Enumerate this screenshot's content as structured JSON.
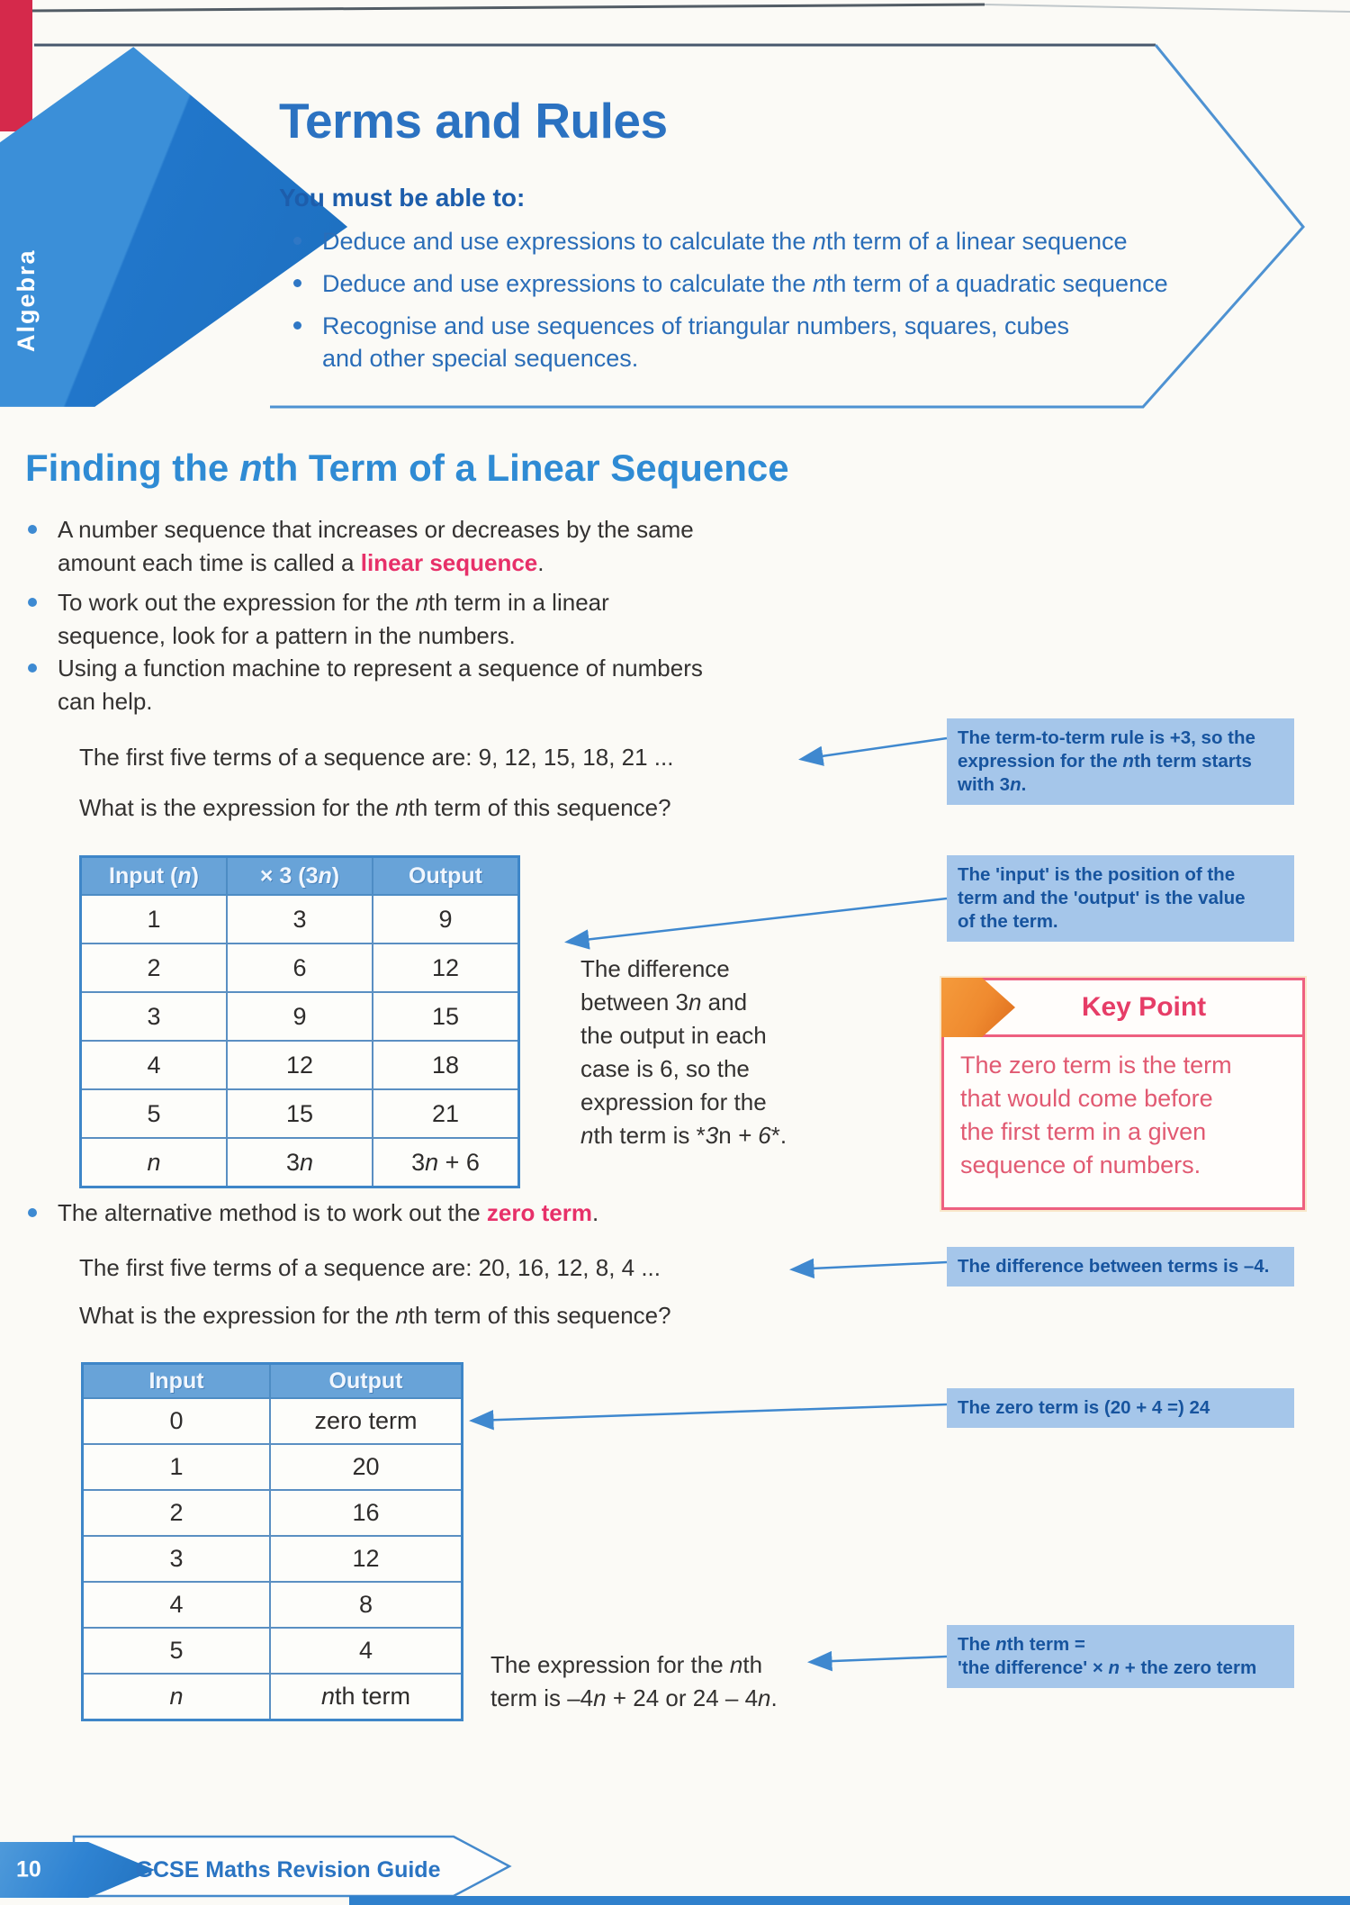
{
  "colors": {
    "brand_blue": "#2b72c1",
    "heading_blue": "#2f8bd4",
    "objective_blue": "#2a6db8",
    "accent_pink": "#e73069",
    "annotation_bg": "#a5c6ea",
    "annotation_text": "#17549e",
    "table_header_bg": "#68a3d8",
    "table_border": "#3e86c8",
    "key_point_red": "#e63d67",
    "key_point_border": "#ee6080",
    "band_blue": "#2c82d0",
    "orange_icon": "#ef8a2f"
  },
  "sidebar": {
    "label": "Algebra"
  },
  "header": {
    "title": "Terms and Rules",
    "lead": "You must be able to:",
    "objectives": [
      "Deduce and use expressions to calculate the *n*th term of a linear sequence",
      "Deduce and use expressions to calculate the *n*th term of a quadratic sequence",
      "Recognise and use sequences of triangular numbers, squares, cubes\nand other special sequences."
    ]
  },
  "section": {
    "heading": "Finding the *n*th Term of a Linear Sequence",
    "bullets": [
      "A number sequence that increases or decreases by the same\namount each time is called a [[linear sequence]].",
      "To work out the expression for the *n*th term in a linear\nsequence, look for a pattern in the numbers.",
      "Using a function machine to represent a sequence of numbers\ncan help."
    ],
    "alt_bullet": "The alternative method is to work out the [[zero term]]."
  },
  "example1": {
    "line1": "The first five terms of a sequence are: 9, 12, 15, 18, 21 ...",
    "line2": "What is the expression for the *n*th term of this sequence?",
    "table": {
      "headers": [
        "Input (*n*)",
        "× 3 (3*n*)",
        "Output"
      ],
      "rows": [
        [
          "1",
          "3",
          "9"
        ],
        [
          "2",
          "6",
          "12"
        ],
        [
          "3",
          "9",
          "15"
        ],
        [
          "4",
          "12",
          "18"
        ],
        [
          "5",
          "15",
          "21"
        ],
        [
          "*n*",
          "3*n*",
          "3*n* + 6"
        ]
      ]
    },
    "note": "The difference\nbetween 3*n* and\nthe output in each\ncase is 6, so the\nexpression for the\n*n*th term is **3*n* + 6**."
  },
  "example2": {
    "line1": "The first five terms of a sequence are: 20, 16, 12, 8, 4 ...",
    "line2": "What is the expression for the *n*th term of this sequence?",
    "table": {
      "headers": [
        "Input",
        "Output"
      ],
      "rows": [
        [
          "0",
          "zero term"
        ],
        [
          "1",
          "20"
        ],
        [
          "2",
          "16"
        ],
        [
          "3",
          "12"
        ],
        [
          "4",
          "8"
        ],
        [
          "5",
          "4"
        ],
        [
          "*n*",
          "*n*th term"
        ]
      ]
    },
    "note": "The expression for the *n*th\nterm is –4*n* + 24 or 24 – 4*n*."
  },
  "annotations": {
    "term_rule": "The term-to-term rule is +3, so the\nexpression for the *n*th term starts\nwith 3*n*.",
    "input_output": "The 'input' is the position of the\nterm and the 'output' is the value\nof the term.",
    "difference": "The difference between terms is –4.",
    "zero_term": "The zero term is (20 + 4 =) 24",
    "nth_formula": "The *n*th term =\n'the difference' × *n* + the zero term"
  },
  "key_point": {
    "title": "Key Point",
    "body": "The zero term is the term\nthat would come before\nthe first term in a given\nsequence of numbers."
  },
  "footer": {
    "page_number": "10",
    "book_title": "GCSE Maths Revision Guide"
  }
}
